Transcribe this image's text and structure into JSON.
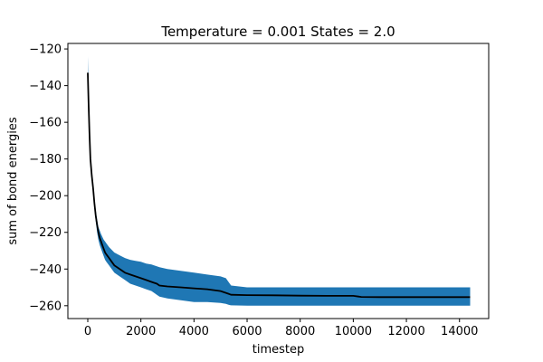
{
  "chart_data": {
    "type": "line",
    "title": "Temperature = 0.001 States = 2.0",
    "xlabel": "timestep",
    "ylabel": "sum of bond energies",
    "xlim": [
      -750,
      15100
    ],
    "ylim": [
      -267,
      -117
    ],
    "xticks": [
      0,
      2000,
      4000,
      6000,
      8000,
      10000,
      12000,
      14000
    ],
    "yticks": [
      -260,
      -240,
      -220,
      -200,
      -180,
      -160,
      -140,
      -120
    ],
    "grid": false,
    "legend": "none",
    "colors": {
      "mean_line": "#000000",
      "band": "#1f77b4"
    },
    "series": [
      {
        "x": [
          0,
          30,
          60,
          100,
          150,
          200,
          250,
          300,
          350,
          400,
          450,
          500,
          550,
          600,
          650,
          700,
          800,
          900,
          1000,
          1200,
          1400,
          1600,
          1800,
          2000,
          2200,
          2400,
          2500,
          2600,
          2700,
          3000,
          3500,
          4000,
          4500,
          5000,
          5200,
          5300,
          5400,
          6000,
          7000,
          8000,
          9000,
          10000,
          10200,
          10300,
          11000,
          12000,
          13000,
          14000,
          14400
        ],
        "mean": [
          -133,
          -150,
          -165,
          -180,
          -189,
          -196,
          -204,
          -211,
          -216,
          -220,
          -223,
          -225,
          -227,
          -229,
          -231,
          -232,
          -234,
          -236,
          -238,
          -240,
          -242,
          -243,
          -244,
          -245,
          -246,
          -247,
          -247.5,
          -248,
          -249,
          -249.5,
          -250,
          -250.5,
          -251,
          -252,
          -253,
          -253.5,
          -254,
          -254.2,
          -254.3,
          -254.5,
          -254.6,
          -254.6,
          -255,
          -255.2,
          -255.3,
          -255.3,
          -255.3,
          -255.3,
          -255.3
        ],
        "upper": [
          -124,
          -147,
          -162,
          -177,
          -186,
          -194,
          -202,
          -208,
          -213,
          -217,
          -219,
          -221,
          -222.5,
          -224,
          -225,
          -226,
          -228,
          -229.5,
          -231,
          -232.5,
          -234,
          -235,
          -235.5,
          -236,
          -237,
          -237.5,
          -238,
          -238.5,
          -239,
          -240,
          -241,
          -242,
          -243,
          -244,
          -245,
          -247,
          -249,
          -250,
          -250,
          -250,
          -250,
          -250,
          -250,
          -250,
          -250,
          -250,
          -250,
          -250,
          -250
        ],
        "lower": [
          -136,
          -153,
          -168,
          -184,
          -192,
          -199,
          -207,
          -214,
          -220,
          -224,
          -227,
          -229,
          -231,
          -233,
          -235,
          -236,
          -238,
          -240,
          -242,
          -244,
          -246,
          -248,
          -249,
          -250,
          -251,
          -252,
          -253,
          -254,
          -255,
          -256,
          -257,
          -258,
          -258,
          -258.5,
          -259,
          -259.5,
          -259.8,
          -260,
          -260,
          -260,
          -260,
          -260,
          -260,
          -260,
          -260,
          -260,
          -260,
          -260,
          -260
        ]
      }
    ]
  }
}
